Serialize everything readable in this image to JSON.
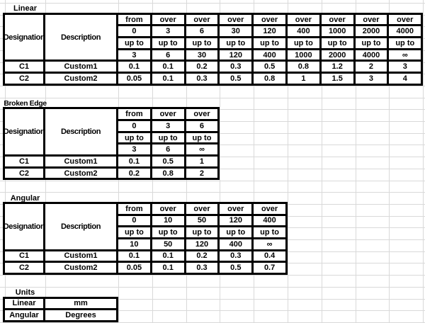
{
  "sheet": {
    "gridline_color": "#d9d9d9",
    "table_border_color": "#000000"
  },
  "sections": {
    "linear": {
      "label": "Linear",
      "designation_header": "Designation",
      "description_header": "Description",
      "cols": [
        {
          "bound": "from",
          "from": "0",
          "upto": "up to",
          "to": "3"
        },
        {
          "bound": "over",
          "from": "3",
          "upto": "up to",
          "to": "6"
        },
        {
          "bound": "over",
          "from": "6",
          "upto": "up to",
          "to": "30"
        },
        {
          "bound": "over",
          "from": "30",
          "upto": "up to",
          "to": "120"
        },
        {
          "bound": "over",
          "from": "120",
          "upto": "up to",
          "to": "400"
        },
        {
          "bound": "over",
          "from": "400",
          "upto": "up to",
          "to": "1000"
        },
        {
          "bound": "over",
          "from": "1000",
          "upto": "up to",
          "to": "2000"
        },
        {
          "bound": "over",
          "from": "2000",
          "upto": "up to",
          "to": "4000"
        },
        {
          "bound": "over",
          "from": "4000",
          "upto": "up to",
          "to": "∞"
        }
      ],
      "rows": [
        {
          "designation": "C1",
          "description": "Custom1",
          "values": [
            "0.1",
            "0.1",
            "0.2",
            "0.3",
            "0.5",
            "0.8",
            "1.2",
            "2",
            "3"
          ]
        },
        {
          "designation": "C2",
          "description": "Custom2",
          "values": [
            "0.05",
            "0.1",
            "0.3",
            "0.5",
            "0.8",
            "1",
            "1.5",
            "3",
            "4"
          ]
        }
      ]
    },
    "broken_edge": {
      "label": "Broken Edge",
      "designation_header": "Designation",
      "description_header": "Description",
      "cols": [
        {
          "bound": "from",
          "from": "0",
          "upto": "up to",
          "to": "3"
        },
        {
          "bound": "over",
          "from": "3",
          "upto": "up to",
          "to": "6"
        },
        {
          "bound": "over",
          "from": "6",
          "upto": "up to",
          "to": "∞"
        }
      ],
      "rows": [
        {
          "designation": "C1",
          "description": "Custom1",
          "values": [
            "0.1",
            "0.5",
            "1"
          ]
        },
        {
          "designation": "C2",
          "description": "Custom2",
          "values": [
            "0.2",
            "0.8",
            "2"
          ]
        }
      ]
    },
    "angular": {
      "label": "Angular",
      "designation_header": "Designation",
      "description_header": "Description",
      "cols": [
        {
          "bound": "from",
          "from": "0",
          "upto": "up to",
          "to": "10"
        },
        {
          "bound": "over",
          "from": "10",
          "upto": "up to",
          "to": "50"
        },
        {
          "bound": "over",
          "from": "50",
          "upto": "up to",
          "to": "120"
        },
        {
          "bound": "over",
          "from": "120",
          "upto": "up to",
          "to": "400"
        },
        {
          "bound": "over",
          "from": "400",
          "upto": "up to",
          "to": "∞"
        }
      ],
      "rows": [
        {
          "designation": "C1",
          "description": "Custom1",
          "values": [
            "0.1",
            "0.1",
            "0.2",
            "0.3",
            "0.4"
          ]
        },
        {
          "designation": "C2",
          "description": "Custom2",
          "values": [
            "0.05",
            "0.1",
            "0.3",
            "0.5",
            "0.7"
          ]
        }
      ]
    },
    "units": {
      "label": "Units",
      "rows": [
        {
          "name": "Linear",
          "value": "mm"
        },
        {
          "name": "Angular",
          "value": "Degrees"
        }
      ]
    }
  }
}
